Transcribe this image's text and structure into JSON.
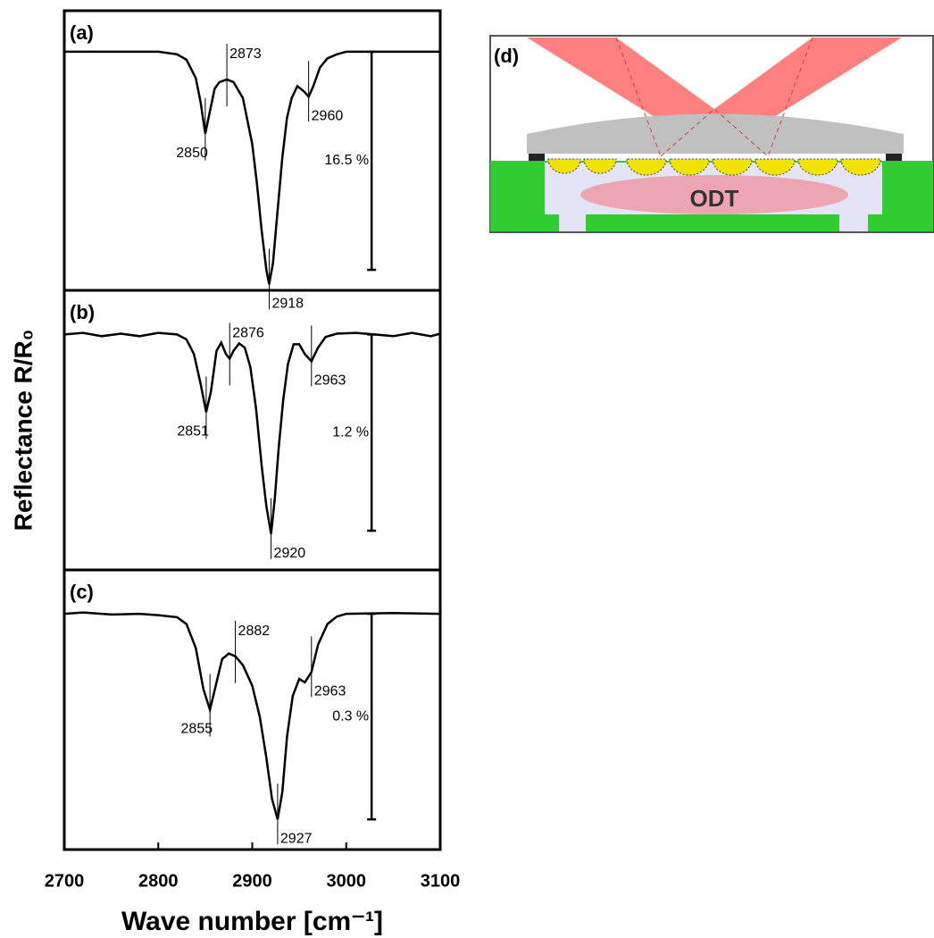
{
  "chart_data": [
    {
      "type": "line",
      "panel_label": "(a)",
      "ylabel": "Reflectance R/R₀",
      "x": [
        2700,
        2750,
        2800,
        2820,
        2830,
        2840,
        2845,
        2850,
        2855,
        2860,
        2865,
        2873,
        2880,
        2890,
        2900,
        2905,
        2910,
        2915,
        2918,
        2922,
        2927,
        2932,
        2937,
        2942,
        2948,
        2955,
        2960,
        2965,
        2972,
        2980,
        2990,
        3000,
        3050,
        3100
      ],
      "values": [
        0,
        0,
        0,
        -0.2,
        -0.6,
        -2.0,
        -3.8,
        -6.2,
        -4.5,
        -2.8,
        -2.3,
        -2.1,
        -2.3,
        -3.5,
        -7,
        -10,
        -13.5,
        -16.5,
        -17.6,
        -16,
        -12,
        -8,
        -5,
        -3.5,
        -2.6,
        -3.0,
        -3.4,
        -2.6,
        -1.2,
        -0.5,
        -0.2,
        0,
        0,
        0
      ],
      "xlim": [
        2700,
        3100
      ],
      "ylim": [
        -18.05,
        3.1
      ],
      "color": "#000000",
      "peaks": [
        2850,
        2873,
        2960,
        2918
      ],
      "scale_bar": {
        "value": 16.5,
        "label": "16.5 %",
        "x": 3027
      }
    },
    {
      "type": "line",
      "panel_label": "(b)",
      "x": [
        2700,
        2720,
        2740,
        2760,
        2780,
        2800,
        2820,
        2830,
        2838,
        2845,
        2851,
        2856,
        2862,
        2867,
        2872,
        2876,
        2880,
        2886,
        2892,
        2898,
        2904,
        2910,
        2915,
        2920,
        2924,
        2928,
        2933,
        2938,
        2944,
        2950,
        2956,
        2963,
        2970,
        2978,
        2990,
        3010,
        3030,
        3050,
        3070,
        3090,
        3100
      ],
      "values": [
        0,
        0.01,
        -0.01,
        0.005,
        -0.01,
        0.01,
        0,
        -0.03,
        -0.12,
        -0.3,
        -0.475,
        -0.35,
        -0.1,
        -0.05,
        -0.12,
        -0.148,
        -0.1,
        -0.055,
        -0.08,
        -0.2,
        -0.45,
        -0.8,
        -1.05,
        -1.22,
        -1.0,
        -0.7,
        -0.4,
        -0.18,
        -0.06,
        -0.06,
        -0.12,
        -0.164,
        -0.08,
        -0.015,
        0.005,
        0.01,
        0,
        -0.01,
        0.01,
        -0.01,
        0.005
      ],
      "xlim": [
        2700,
        3100
      ],
      "ylim": [
        -1.44,
        0.27
      ],
      "color": "#000000",
      "peaks": [
        2851,
        2876,
        2963,
        2920
      ],
      "scale_bar": {
        "value": 1.2,
        "label": "1.2 %",
        "x": 3027
      }
    },
    {
      "type": "line",
      "panel_label": "(c)",
      "xlabel": "Wave number [cm⁻¹]",
      "x": [
        2700,
        2720,
        2750,
        2780,
        2800,
        2820,
        2830,
        2840,
        2848,
        2855,
        2862,
        2868,
        2875,
        2882,
        2890,
        2900,
        2908,
        2915,
        2921,
        2927,
        2932,
        2937,
        2943,
        2950,
        2956,
        2963,
        2970,
        2980,
        2990,
        3000,
        3050,
        3100
      ],
      "values": [
        0,
        0.002,
        -0.001,
        0,
        -0.002,
        -0.005,
        -0.015,
        -0.05,
        -0.11,
        -0.14,
        -0.1,
        -0.066,
        -0.058,
        -0.062,
        -0.075,
        -0.105,
        -0.15,
        -0.21,
        -0.27,
        -0.3,
        -0.26,
        -0.18,
        -0.12,
        -0.095,
        -0.1,
        -0.085,
        -0.045,
        -0.015,
        -0.004,
        0,
        0.001,
        0
      ],
      "xlim": [
        2700,
        3100
      ],
      "ylim": [
        -0.344,
        0.064
      ],
      "color": "#000000",
      "xticks": [
        2700,
        2800,
        2900,
        3000,
        3100
      ],
      "peaks": [
        2855,
        2882,
        2963,
        2927
      ],
      "scale_bar": {
        "value": 0.3,
        "label": "0.3 %",
        "x": 3027
      }
    }
  ],
  "schematic": {
    "panel_label": "(d)",
    "text": "ODT"
  }
}
